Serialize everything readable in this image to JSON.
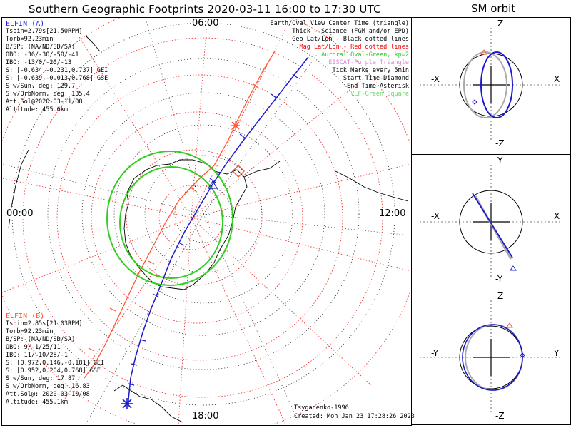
{
  "header": {
    "title": "Southern Geographic Footprints 2020-03-11 16:00 to 17:30 UTC",
    "sm_title": "SM orbit"
  },
  "map": {
    "mlt_labels": {
      "top": "06:00",
      "left": "00:00",
      "right": "12:00",
      "bottom": "18:00"
    }
  },
  "elfin_a": {
    "name": "ELFIN (A)",
    "color": "#1a1acc",
    "lines": [
      "Tspin=2.79s[21.50RPM]",
      "Torb=92.23min",
      "B/SP: (NA/ND/SD/SA)",
      "OBO: -36/-30/-50/-41",
      "IBO: -13/0/-20/-13",
      "S: [-0.634,-0.231,0.737] GEI",
      "S: [-0.639,-0.013,0.768] GSE",
      "S w/Sun, deg: 129.7",
      "S w/OrbNorm, deg: 135.4",
      "Att.Sol@2020-03-11/08",
      "Altitude: 455.6km"
    ]
  },
  "elfin_b": {
    "name": "ELFIN (B)",
    "color": "#ff5533",
    "lines": [
      "Tspin=2.85s[21.03RPM]",
      "Torb=92.23min",
      "B/SP: (NA/ND/SD/SA)",
      "OBO: 9/-1/25/11",
      "IBO: 11/-10/28/-1",
      "S: [0.972,0.146,-0.181] GEI",
      "S: [0.952,0.204,0.768] GSE",
      "S w/Sun, deg: 17.87",
      "S w/OrbNorm, deg: 16.83",
      "Att.Sol@: 2020-03-10/08",
      "Altitude: 455.1km"
    ]
  },
  "legend": [
    {
      "text": "Earth/Oval View Center Time (triangle)",
      "color": "#000000"
    },
    {
      "text": "Thick - Science (FGM and/or EPD)",
      "color": "#000000"
    },
    {
      "text": "Geo Lat/Lon - Black dotted lines",
      "color": "#000000"
    },
    {
      "text": "Mag Lat/Lon - Red dotted lines",
      "color": "#ee0000"
    },
    {
      "text": "Auroral Oval-Green, kp=2",
      "color": "#22cc22"
    },
    {
      "text": "EISCAT-Purple Triangle",
      "color": "#dd88dd"
    },
    {
      "text": "Tick Marks every 5min",
      "color": "#000000"
    },
    {
      "text": "Start Time-Diamond",
      "color": "#000000"
    },
    {
      "text": "End Time-Asterisk",
      "color": "#000000"
    },
    {
      "text": "VLF-Green Square",
      "color": "#66dd66"
    }
  ],
  "footer": {
    "credit": "Tsyganenko-1996",
    "created": "Created: Mon Jan 23 17:28:26 2023"
  },
  "sm_panels": [
    {
      "top": "Z",
      "bottom": "-Z",
      "left": "-X",
      "right": "X"
    },
    {
      "top": "Y",
      "bottom": "-Y",
      "left": "-X",
      "right": "X"
    },
    {
      "top": "Z",
      "bottom": "-Z",
      "left": "-Y",
      "right": "Y"
    }
  ],
  "chart_data": {
    "type": "line",
    "title": "Southern Geographic Footprints 2020-03-11 16:00 to 17:30 UTC",
    "projection": "south-polar",
    "mlt_labels": [
      "00:00",
      "06:00",
      "12:00",
      "18:00"
    ],
    "series": [
      {
        "name": "ELFIN (A)",
        "color": "#1a1acc"
      },
      {
        "name": "ELFIN (B)",
        "color": "#ff5533"
      }
    ],
    "legend_placement": "top-right"
  }
}
